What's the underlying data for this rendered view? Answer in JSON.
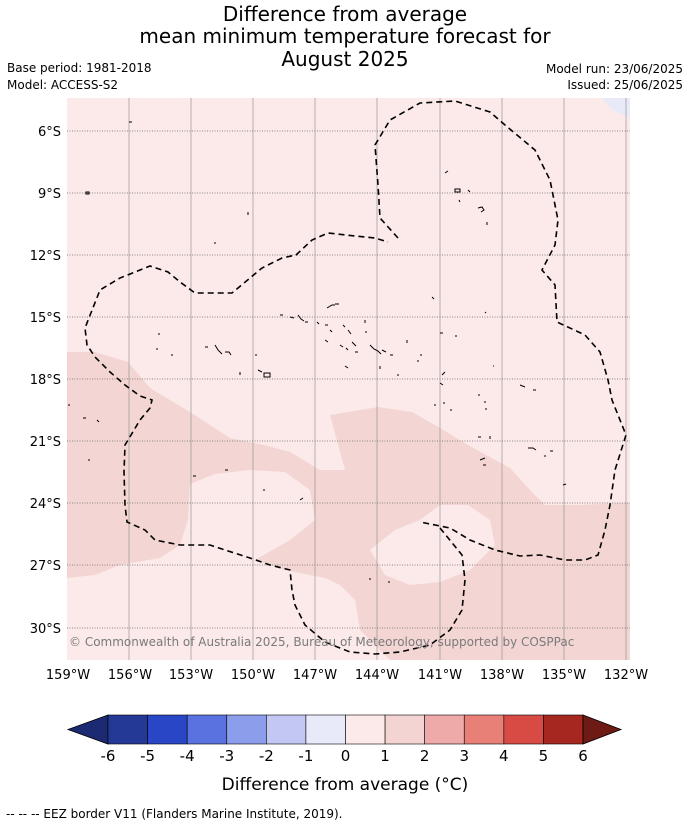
{
  "title": {
    "line1": "Difference from average",
    "line2": "mean minimum temperature forecast for",
    "line3": "August 2025"
  },
  "meta_left": {
    "base_period": "Base period: 1981-2018",
    "model": "Model: ACCESS-S2"
  },
  "meta_right": {
    "model_run": "Model run: 23/06/2025",
    "issued": "Issued: 25/06/2025"
  },
  "map": {
    "lat_labels": [
      "6°S",
      "9°S",
      "12°S",
      "15°S",
      "18°S",
      "21°S",
      "24°S",
      "27°S",
      "30°S"
    ],
    "lon_labels": [
      "159°W",
      "156°W",
      "153°W",
      "150°W",
      "147°W",
      "144°W",
      "141°W",
      "138°W",
      "135°W",
      "132°W"
    ],
    "copyright": "© Commonwealth of Australia 2025, Bureau of Meteorology, supported by COSPPac",
    "colors": {
      "anom_0_1": "#fbeae9",
      "anom_1_2": "#f3d6d4",
      "anom_m1_0": "#e8eaf8",
      "ocean_outline": "#000000"
    }
  },
  "colorbar": {
    "ticks": [
      "-6",
      "-5",
      "-4",
      "-3",
      "-2",
      "-1",
      "0",
      "1",
      "2",
      "3",
      "4",
      "5",
      "6"
    ],
    "colors": [
      "#243996",
      "#2946c6",
      "#5a72df",
      "#8c9deb",
      "#c2c8f3",
      "#e8eaf9",
      "#fbeae9",
      "#f3d4d3",
      "#eeaaa8",
      "#e88078",
      "#d84a44",
      "#a5271f"
    ],
    "under_color": "#1b2a73",
    "over_color": "#6e1a15",
    "label": "Difference from average (°C)"
  },
  "footnote": "--  --  -- EEZ border V11 (Flanders Marine Institute, 2019)."
}
